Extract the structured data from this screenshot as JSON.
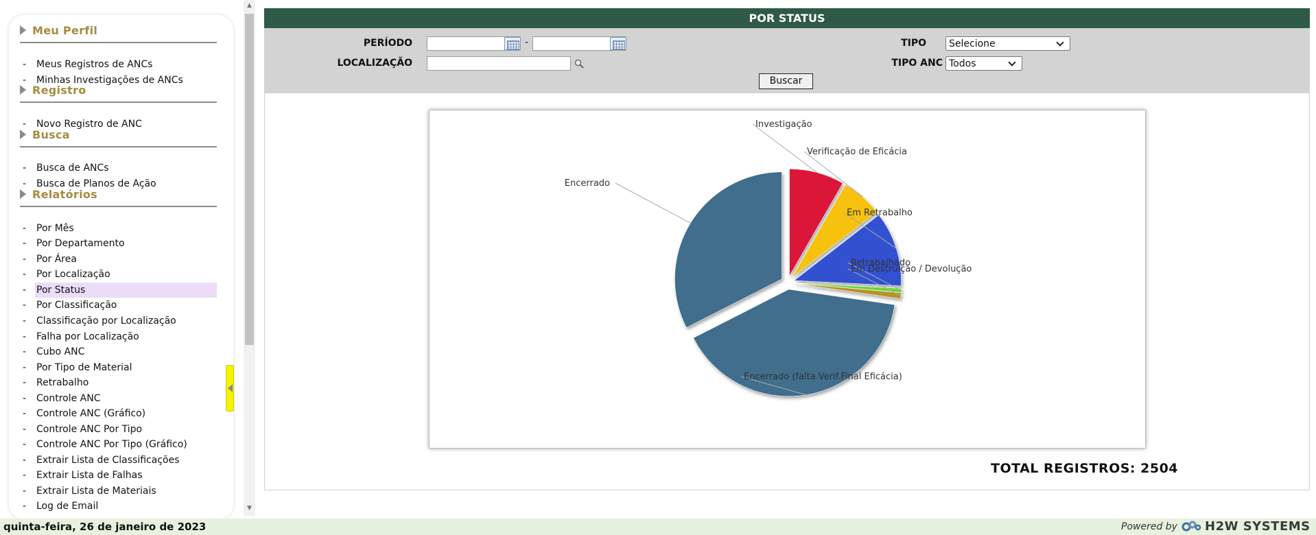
{
  "sidebar": {
    "sections": [
      {
        "title": "Meu Perfil",
        "items": [
          "Meus Registros de ANCs",
          "Minhas Investigações de ANCs"
        ]
      },
      {
        "title": "Registro",
        "items": [
          "Novo Registro de ANC"
        ]
      },
      {
        "title": "Busca",
        "items": [
          "Busca de ANCs",
          "Busca de Planos de Ação"
        ]
      },
      {
        "title": "Relatórios",
        "items": [
          "Por Mês",
          "Por Departamento",
          "Por Área",
          "Por Localização",
          "Por Status",
          "Por Classificação",
          "Classificação por Localização",
          "Falha por Localização",
          "Cubo ANC",
          "Por Tipo de Material",
          "Retrabalho",
          "Controle ANC",
          "Controle ANC (Gráfico)",
          "Controle ANC Por Tipo",
          "Controle ANC Por Tipo (Gráfico)",
          "Extrair Lista de Classificações",
          "Extrair Lista de Falhas",
          "Extrair Lista de Materiais",
          "Log de Email"
        ]
      }
    ],
    "active_item": "Por Status",
    "item_prefix": "-"
  },
  "header": {
    "title": "POR STATUS"
  },
  "filters": {
    "periodo_label": "PERÍODO",
    "periodo_sep": "-",
    "periodo_start": "",
    "periodo_end": "",
    "localizacao_label": "LOCALIZAÇÃO",
    "localizacao_value": "",
    "tipo_label": "TIPO",
    "tipo_value": "Selecione",
    "tipo_anc_label": "TIPO ANC",
    "tipo_anc_value": "Todos",
    "search_label": "Buscar"
  },
  "chart_data": {
    "type": "pie",
    "title": "",
    "slices": [
      {
        "label": "Investigação",
        "value": 8.3,
        "color": "#dc1937"
      },
      {
        "label": "Verificação de Eficácia",
        "value": 6.2,
        "color": "#f6c209"
      },
      {
        "label": "Em Retrabalho",
        "value": 11.3,
        "color": "#3351d1"
      },
      {
        "label": "Retrabalhado",
        "value": 0.6,
        "color": "#6bd739"
      },
      {
        "label": "Em Destruição / Devolução",
        "value": 0.9,
        "color": "#b69425"
      },
      {
        "label": "Encerrado (falta Verif.Final Eficácia)",
        "value": 40.2,
        "color": "#3f6e8c"
      },
      {
        "label": "Encerrado",
        "value": 32.5,
        "color": "#3f6e8c"
      }
    ]
  },
  "total": {
    "label": "TOTAL REGISTROS:",
    "value": "2504"
  },
  "footer": {
    "date": "quinta-feira, 26 de janeiro de 2023",
    "powered": "Powered by",
    "brand": "H2W SYSTEMS"
  }
}
